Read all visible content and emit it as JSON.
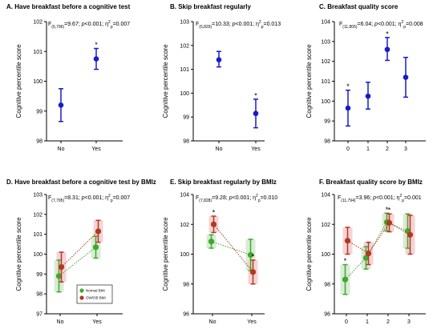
{
  "page": {
    "background": "#ffffff"
  },
  "colors": {
    "blue": "#1a1acc",
    "green": "#3fa82e",
    "red": "#b03a1e",
    "green_band": "#d9ecd4",
    "red_band": "#f5d3d6"
  },
  "chart_data": [
    {
      "type": "errorbar",
      "panel": "A",
      "title": "A. Have breakfast before a cognitive test",
      "stat_text": "F(6,796)=9.67; p<0.001; η²p=0.007",
      "ylabel": "Cognitive percentile score",
      "categories": [
        "No",
        "Yes"
      ],
      "ylim": [
        98,
        102
      ],
      "yticks": [
        "98",
        "99",
        "100",
        "101",
        "102"
      ],
      "series": [
        {
          "color": "blue",
          "values": [
            99.2,
            100.75
          ],
          "err_low": [
            98.65,
            100.4
          ],
          "err_high": [
            99.75,
            101.1
          ],
          "significant": [
            false,
            true
          ]
        }
      ]
    },
    {
      "type": "errorbar",
      "panel": "B",
      "title": "B. Skip breakfast regularly",
      "stat_text": "F(6,829)=10.33; p<0.001; η²p=0.013",
      "ylabel": "Cognitive percentile score",
      "categories": [
        "No",
        "Yes"
      ],
      "ylim": [
        98,
        103
      ],
      "yticks": [
        "98",
        "99",
        "100",
        "101",
        "102",
        "103"
      ],
      "series": [
        {
          "color": "blue",
          "values": [
            101.4,
            99.15
          ],
          "err_low": [
            101.1,
            98.55
          ],
          "err_high": [
            101.75,
            99.75
          ],
          "significant": [
            false,
            true
          ]
        }
      ]
    },
    {
      "type": "errorbar",
      "panel": "C",
      "title": "C. Breakfast quality score",
      "stat_text": "F(11,805)=6.04; p<0.001; η²p=0.008",
      "ylabel": "Cognitive percentile score",
      "categories": [
        "0",
        "1",
        "2",
        "3"
      ],
      "ylim": [
        98,
        104
      ],
      "yticks": [
        "98",
        "99",
        "100",
        "101",
        "102",
        "103",
        "104"
      ],
      "series": [
        {
          "color": "blue",
          "values": [
            99.65,
            100.25,
            102.6,
            101.2
          ],
          "err_low": [
            98.75,
            99.6,
            102.05,
            100.2
          ],
          "err_high": [
            100.55,
            100.95,
            103.2,
            102.2
          ],
          "significant": [
            true,
            false,
            true,
            false
          ]
        }
      ]
    },
    {
      "type": "errorbar",
      "panel": "D",
      "title": "D. Have breakfast before a cognitive test by BMIz",
      "stat_text": "F(7,795)=8.31; p<0.001; η²p=0.007",
      "ylabel": "Cognitive percentile score",
      "categories": [
        "No",
        "Yes"
      ],
      "ylim": [
        97,
        103
      ],
      "yticks": [
        "97",
        "98",
        "99",
        "100",
        "101",
        "102",
        "103"
      ],
      "legend": {
        "position": "bottom-center",
        "entries": [
          "Normal BMI",
          "OW/OB BMI"
        ]
      },
      "series": [
        {
          "name": "Normal BMI",
          "color": "green",
          "values": [
            98.9,
            100.35
          ],
          "err_low": [
            98.1,
            99.8
          ],
          "err_high": [
            99.7,
            100.9
          ],
          "significant": [
            false,
            false
          ]
        },
        {
          "name": "OW/OB BMI",
          "color": "red",
          "values": [
            99.35,
            101.15
          ],
          "err_low": [
            98.6,
            100.6
          ],
          "err_high": [
            100.1,
            101.7
          ],
          "significant": [
            false,
            false
          ]
        }
      ]
    },
    {
      "type": "errorbar",
      "panel": "E",
      "title": "E. Skip breakfast regularly by BMIz",
      "stat_text": "F(7,828)=9.28; p<0.001; η²p=0.010",
      "ylabel": "Cognitive percentile score",
      "categories": [
        "No",
        "Yes"
      ],
      "ylim": [
        96,
        104
      ],
      "yticks": [
        "96",
        "98",
        "100",
        "102",
        "104"
      ],
      "series": [
        {
          "name": "Normal BMI",
          "color": "green",
          "values": [
            100.85,
            99.95
          ],
          "err_low": [
            100.4,
            98.9
          ],
          "err_high": [
            101.3,
            101.0
          ],
          "significant": [
            false,
            false
          ]
        },
        {
          "name": "OW/OB BMI",
          "color": "red",
          "values": [
            102.0,
            98.8
          ],
          "err_low": [
            101.45,
            98.0
          ],
          "err_high": [
            102.55,
            99.6
          ],
          "significant": [
            true,
            true
          ]
        }
      ]
    },
    {
      "type": "errorbar",
      "panel": "F",
      "title": "F. Breakfast quality score by BMIz",
      "stat_text": "F(11,794)=3.96; p<0.001; η²p=0.001",
      "ylabel": "Cognitive percentile score",
      "categories": [
        "0",
        "1",
        "2",
        "3"
      ],
      "ylim": [
        96,
        104
      ],
      "yticks": [
        "96",
        "98",
        "100",
        "102",
        "104"
      ],
      "series": [
        {
          "name": "Normal BMI",
          "color": "green",
          "values": [
            98.3,
            99.75,
            102.15,
            101.55
          ],
          "err_low": [
            97.3,
            99.0,
            101.55,
            100.4
          ],
          "err_high": [
            99.3,
            100.5,
            102.75,
            102.7
          ],
          "significant": [
            true,
            false,
            true,
            false
          ]
        },
        {
          "name": "OW/OB BMI",
          "color": "red",
          "values": [
            100.9,
            100.05,
            102.1,
            101.3
          ],
          "err_low": [
            100.0,
            99.3,
            101.5,
            100.0
          ],
          "err_high": [
            101.8,
            100.8,
            102.7,
            102.6
          ],
          "significant": [
            false,
            false,
            true,
            false
          ]
        }
      ]
    }
  ]
}
